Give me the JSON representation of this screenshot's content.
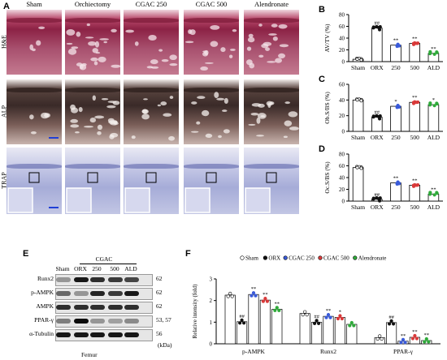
{
  "panels": {
    "A": {
      "letter": "A",
      "columns": [
        "Sham",
        "Orchiectomy",
        "CGAC 250",
        "CGAC 500",
        "Alendronate"
      ],
      "rows": [
        "H&E",
        "ALP",
        "TRAP"
      ]
    },
    "B": {
      "letter": "B"
    },
    "C": {
      "letter": "C"
    },
    "D": {
      "letter": "D"
    },
    "E": {
      "letter": "E",
      "group_label": "CGAC",
      "lane_labels": [
        "Sham",
        "ORX",
        "250",
        "500",
        "ALD"
      ],
      "bands": [
        {
          "name": "Runx2",
          "kda": "62"
        },
        {
          "name": "p-AMPK",
          "kda": "62"
        },
        {
          "name": "AMPK",
          "kda": "62"
        },
        {
          "name": "PPAR-γ",
          "kda": "53, 57"
        },
        {
          "name": "α-Tubulin",
          "kda": "56"
        }
      ],
      "kda_unit": "(kDa)",
      "tissue": "Femur"
    },
    "F": {
      "letter": "F"
    }
  },
  "chart_data": [
    {
      "id": "B",
      "type": "bar",
      "categories": [
        "Sham",
        "ORX",
        "250",
        "500",
        "ALD"
      ],
      "values": [
        4,
        57,
        28,
        31,
        14
      ],
      "ylabel": "AV/TV (%)",
      "ylim": [
        0,
        80
      ],
      "yticks": [
        0,
        20,
        40,
        60,
        80
      ],
      "significance": [
        "",
        "##",
        "**",
        "**",
        "**"
      ],
      "colors": [
        "#ffffff",
        "#111111",
        "#3a5bd9",
        "#d93a3a",
        "#2faa3a"
      ]
    },
    {
      "id": "C",
      "type": "bar",
      "categories": [
        "Sham",
        "ORX",
        "250",
        "500",
        "ALD"
      ],
      "values": [
        40,
        18,
        32,
        37,
        34
      ],
      "ylabel": "Ob.S/BS (%)",
      "ylim": [
        0,
        60
      ],
      "yticks": [
        0,
        20,
        40,
        60
      ],
      "significance": [
        "",
        "##",
        "*",
        "**",
        "*"
      ],
      "colors": [
        "#ffffff",
        "#111111",
        "#3a5bd9",
        "#d93a3a",
        "#2faa3a"
      ]
    },
    {
      "id": "D",
      "type": "bar",
      "categories": [
        "Sham",
        "ORX",
        "250",
        "500",
        "ALD"
      ],
      "values": [
        57,
        3,
        31,
        27,
        12
      ],
      "ylabel": "Oc.S/BS (%)",
      "ylim": [
        0,
        80
      ],
      "yticks": [
        0,
        20,
        40,
        60,
        80
      ],
      "significance": [
        "",
        "##",
        "**",
        "**",
        "**"
      ],
      "colors": [
        "#ffffff",
        "#111111",
        "#3a5bd9",
        "#d93a3a",
        "#2faa3a"
      ]
    },
    {
      "id": "F",
      "type": "bar",
      "categories": [
        "p-AMPK",
        "Runx2",
        "PPAR-γ"
      ],
      "series": [
        {
          "name": "Sham",
          "values": [
            2.25,
            1.4,
            0.28
          ],
          "color": "#ffffff"
        },
        {
          "name": "ORX",
          "values": [
            1.02,
            1.0,
            0.98
          ],
          "color": "#111111"
        },
        {
          "name": "CGAC 250",
          "values": [
            2.28,
            1.27,
            0.12
          ],
          "color": "#3a5bd9"
        },
        {
          "name": "CGAC 500",
          "values": [
            2.02,
            1.22,
            0.3
          ],
          "color": "#d93a3a"
        },
        {
          "name": "Alendronate",
          "values": [
            1.6,
            0.9,
            0.15
          ],
          "color": "#2faa3a"
        }
      ],
      "significance": [
        [
          "",
          "##",
          "**",
          "**",
          "**"
        ],
        [
          "",
          "##",
          "**",
          "*",
          ""
        ],
        [
          "",
          "##",
          "**",
          "**",
          "**"
        ]
      ],
      "ylabel": "Relative intensity (fold)",
      "ylim": [
        0,
        3
      ],
      "yticks": [
        0,
        1,
        2,
        3
      ],
      "legend": "top"
    }
  ]
}
